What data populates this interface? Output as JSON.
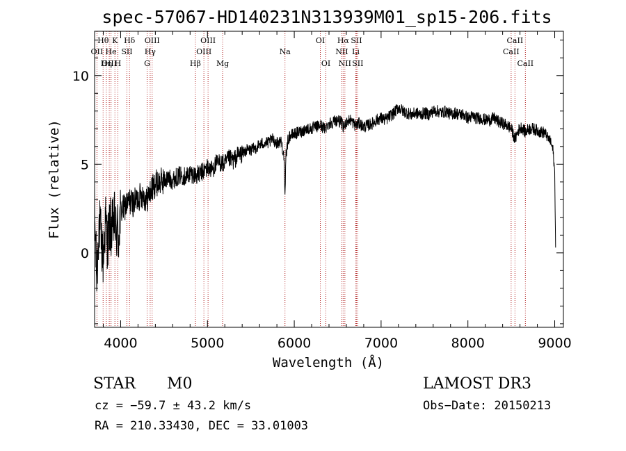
{
  "chart_data": {
    "type": "line",
    "title": "spec-57067-HD140231N313939M01_sp15-206.fits",
    "xlabel": "Wavelength (Å)",
    "ylabel": "Flux (relative)",
    "xlim": [
      3700,
      9100
    ],
    "ylim": [
      -4.2,
      12.5
    ],
    "xticks": [
      4000,
      5000,
      6000,
      7000,
      8000,
      9000
    ],
    "yticks": [
      0,
      5,
      10
    ],
    "series": [
      {
        "name": "flux",
        "x": [
          3700,
          3725,
          3750,
          3775,
          3800,
          3825,
          3850,
          3875,
          3900,
          3925,
          3950,
          3965,
          3975,
          3990,
          4000,
          4050,
          4100,
          4150,
          4200,
          4250,
          4300,
          4350,
          4400,
          4450,
          4500,
          4550,
          4600,
          4650,
          4700,
          4750,
          4800,
          4850,
          4900,
          4950,
          5000,
          5050,
          5100,
          5150,
          5200,
          5250,
          5300,
          5350,
          5400,
          5450,
          5500,
          5550,
          5600,
          5650,
          5700,
          5750,
          5800,
          5850,
          5880,
          5893,
          5905,
          5930,
          5950,
          6000,
          6050,
          6100,
          6150,
          6200,
          6250,
          6300,
          6350,
          6400,
          6450,
          6500,
          6550,
          6563,
          6600,
          6650,
          6700,
          6750,
          6800,
          6850,
          6900,
          6950,
          7000,
          7050,
          7100,
          7150,
          7200,
          7250,
          7300,
          7350,
          7400,
          7450,
          7500,
          7550,
          7600,
          7650,
          7700,
          7750,
          7800,
          7850,
          7900,
          7950,
          8000,
          8050,
          8100,
          8150,
          8200,
          8250,
          8300,
          8350,
          8400,
          8450,
          8500,
          8542,
          8580,
          8620,
          8662,
          8700,
          8750,
          8800,
          8850,
          8880,
          8920,
          8950,
          8980,
          9000,
          9010
        ],
        "y": [
          2.2,
          -1.5,
          1.8,
          0.8,
          -0.4,
          1.9,
          0.5,
          1.6,
          1.2,
          2.0,
          1.0,
          1.4,
          0.6,
          1.8,
          2.3,
          2.6,
          2.9,
          2.8,
          3.1,
          3.3,
          3.0,
          3.5,
          3.9,
          4.0,
          4.1,
          4.2,
          4.1,
          4.3,
          4.4,
          4.3,
          4.5,
          4.4,
          4.4,
          4.6,
          4.8,
          4.7,
          5.0,
          5.1,
          5.0,
          5.3,
          5.2,
          5.5,
          5.6,
          5.8,
          5.8,
          5.9,
          6.1,
          6.2,
          6.2,
          6.4,
          6.2,
          6.3,
          5.5,
          3.2,
          5.6,
          6.4,
          6.6,
          6.7,
          6.8,
          6.9,
          7.0,
          7.0,
          7.1,
          7.2,
          7.0,
          7.3,
          7.4,
          7.5,
          7.3,
          7.0,
          7.4,
          7.5,
          7.2,
          7.3,
          7.1,
          7.2,
          7.3,
          7.5,
          7.6,
          7.5,
          7.7,
          7.9,
          8.2,
          8.0,
          7.9,
          7.8,
          7.9,
          7.8,
          7.9,
          7.8,
          8.0,
          8.0,
          7.9,
          8.0,
          7.8,
          7.9,
          7.8,
          7.8,
          7.6,
          7.7,
          7.6,
          7.6,
          7.5,
          7.5,
          7.6,
          7.4,
          7.3,
          7.2,
          7.0,
          6.4,
          6.9,
          7.1,
          6.8,
          7.0,
          7.0,
          6.9,
          6.8,
          6.8,
          6.5,
          6.3,
          5.8,
          4.5,
          0.3
        ]
      }
    ],
    "spectral_lines": [
      {
        "label": "Hθ",
        "wave": 3798,
        "row": 1
      },
      {
        "label": "OII",
        "wave": 3727,
        "row": 2
      },
      {
        "label": "OIII",
        "wave": 3869,
        "row": 3
      },
      {
        "label": "K",
        "wave": 3934,
        "row": 1
      },
      {
        "label": "He",
        "wave": 3889,
        "row": 2
      },
      {
        "label": "Hη",
        "wave": 3835,
        "row": 3
      },
      {
        "label": "Hδ",
        "wave": 4102,
        "row": 1
      },
      {
        "label": "SII",
        "wave": 4072,
        "row": 2
      },
      {
        "label": "H",
        "wave": 3968,
        "row": 3
      },
      {
        "label": "OIII",
        "wave": 4363,
        "row": 1
      },
      {
        "label": "Hγ",
        "wave": 4340,
        "row": 2
      },
      {
        "label": "G",
        "wave": 4305,
        "row": 3
      },
      {
        "label": "OIII",
        "wave": 5007,
        "row": 1
      },
      {
        "label": "OIII",
        "wave": 4959,
        "row": 2
      },
      {
        "label": "Hβ",
        "wave": 4861,
        "row": 3
      },
      {
        "label": "Mg",
        "wave": 5175,
        "row": 3
      },
      {
        "label": "Na",
        "wave": 5893,
        "row": 2
      },
      {
        "label": "OI",
        "wave": 6300,
        "row": 1
      },
      {
        "label": "OI",
        "wave": 6364,
        "row": 3
      },
      {
        "label": "Hα",
        "wave": 6563,
        "row": 1
      },
      {
        "label": "SII",
        "wave": 6716,
        "row": 1
      },
      {
        "label": "NII",
        "wave": 6548,
        "row": 2
      },
      {
        "label": "Li",
        "wave": 6708,
        "row": 2
      },
      {
        "label": "NII",
        "wave": 6583,
        "row": 3
      },
      {
        "label": "SII",
        "wave": 6731,
        "row": 3
      },
      {
        "label": "CaII",
        "wave": 8542,
        "row": 1
      },
      {
        "label": "CaII",
        "wave": 8498,
        "row": 2
      },
      {
        "label": "CaII",
        "wave": 8662,
        "row": 3
      }
    ]
  },
  "info": {
    "object_class": "STAR",
    "subclass": "M0",
    "survey": "LAMOST DR3",
    "cz": "cz = −59.7 ± 43.2 km/s",
    "obs_date": "Obs−Date: 20150213",
    "coords": "RA = 210.33430, DEC =  33.01003"
  }
}
